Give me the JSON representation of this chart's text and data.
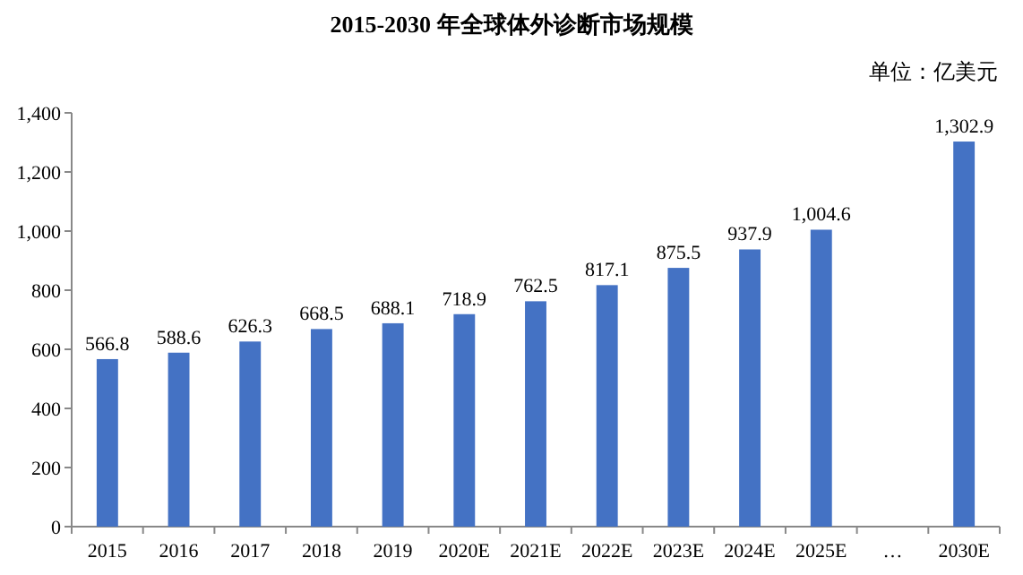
{
  "chart_data": {
    "type": "bar",
    "title": "2015-2030 年全球体外诊断市场规模",
    "annotations": [
      "单位：亿美元"
    ],
    "categories": [
      "2015",
      "2016",
      "2017",
      "2018",
      "2019",
      "2020E",
      "2021E",
      "2022E",
      "2023E",
      "2024E",
      "2025E",
      "…",
      "2030E"
    ],
    "values": [
      566.8,
      588.6,
      626.3,
      668.5,
      688.1,
      718.9,
      762.5,
      817.1,
      875.5,
      937.9,
      1004.6,
      null,
      1302.9
    ],
    "value_labels": [
      "566.8",
      "588.6",
      "626.3",
      "668.5",
      "688.1",
      "718.9",
      "762.5",
      "817.1",
      "875.5",
      "937.9",
      "1,004.6",
      null,
      "1,302.9"
    ],
    "color": "#4472c4",
    "ylim": [
      0,
      1400
    ],
    "yticks": [
      0,
      200,
      400,
      600,
      800,
      {
        "value": 1000,
        "label": "1,000"
      },
      {
        "value": 1200,
        "label": "1,200"
      },
      {
        "value": 1400,
        "label": "1,400"
      }
    ],
    "grid": false
  }
}
